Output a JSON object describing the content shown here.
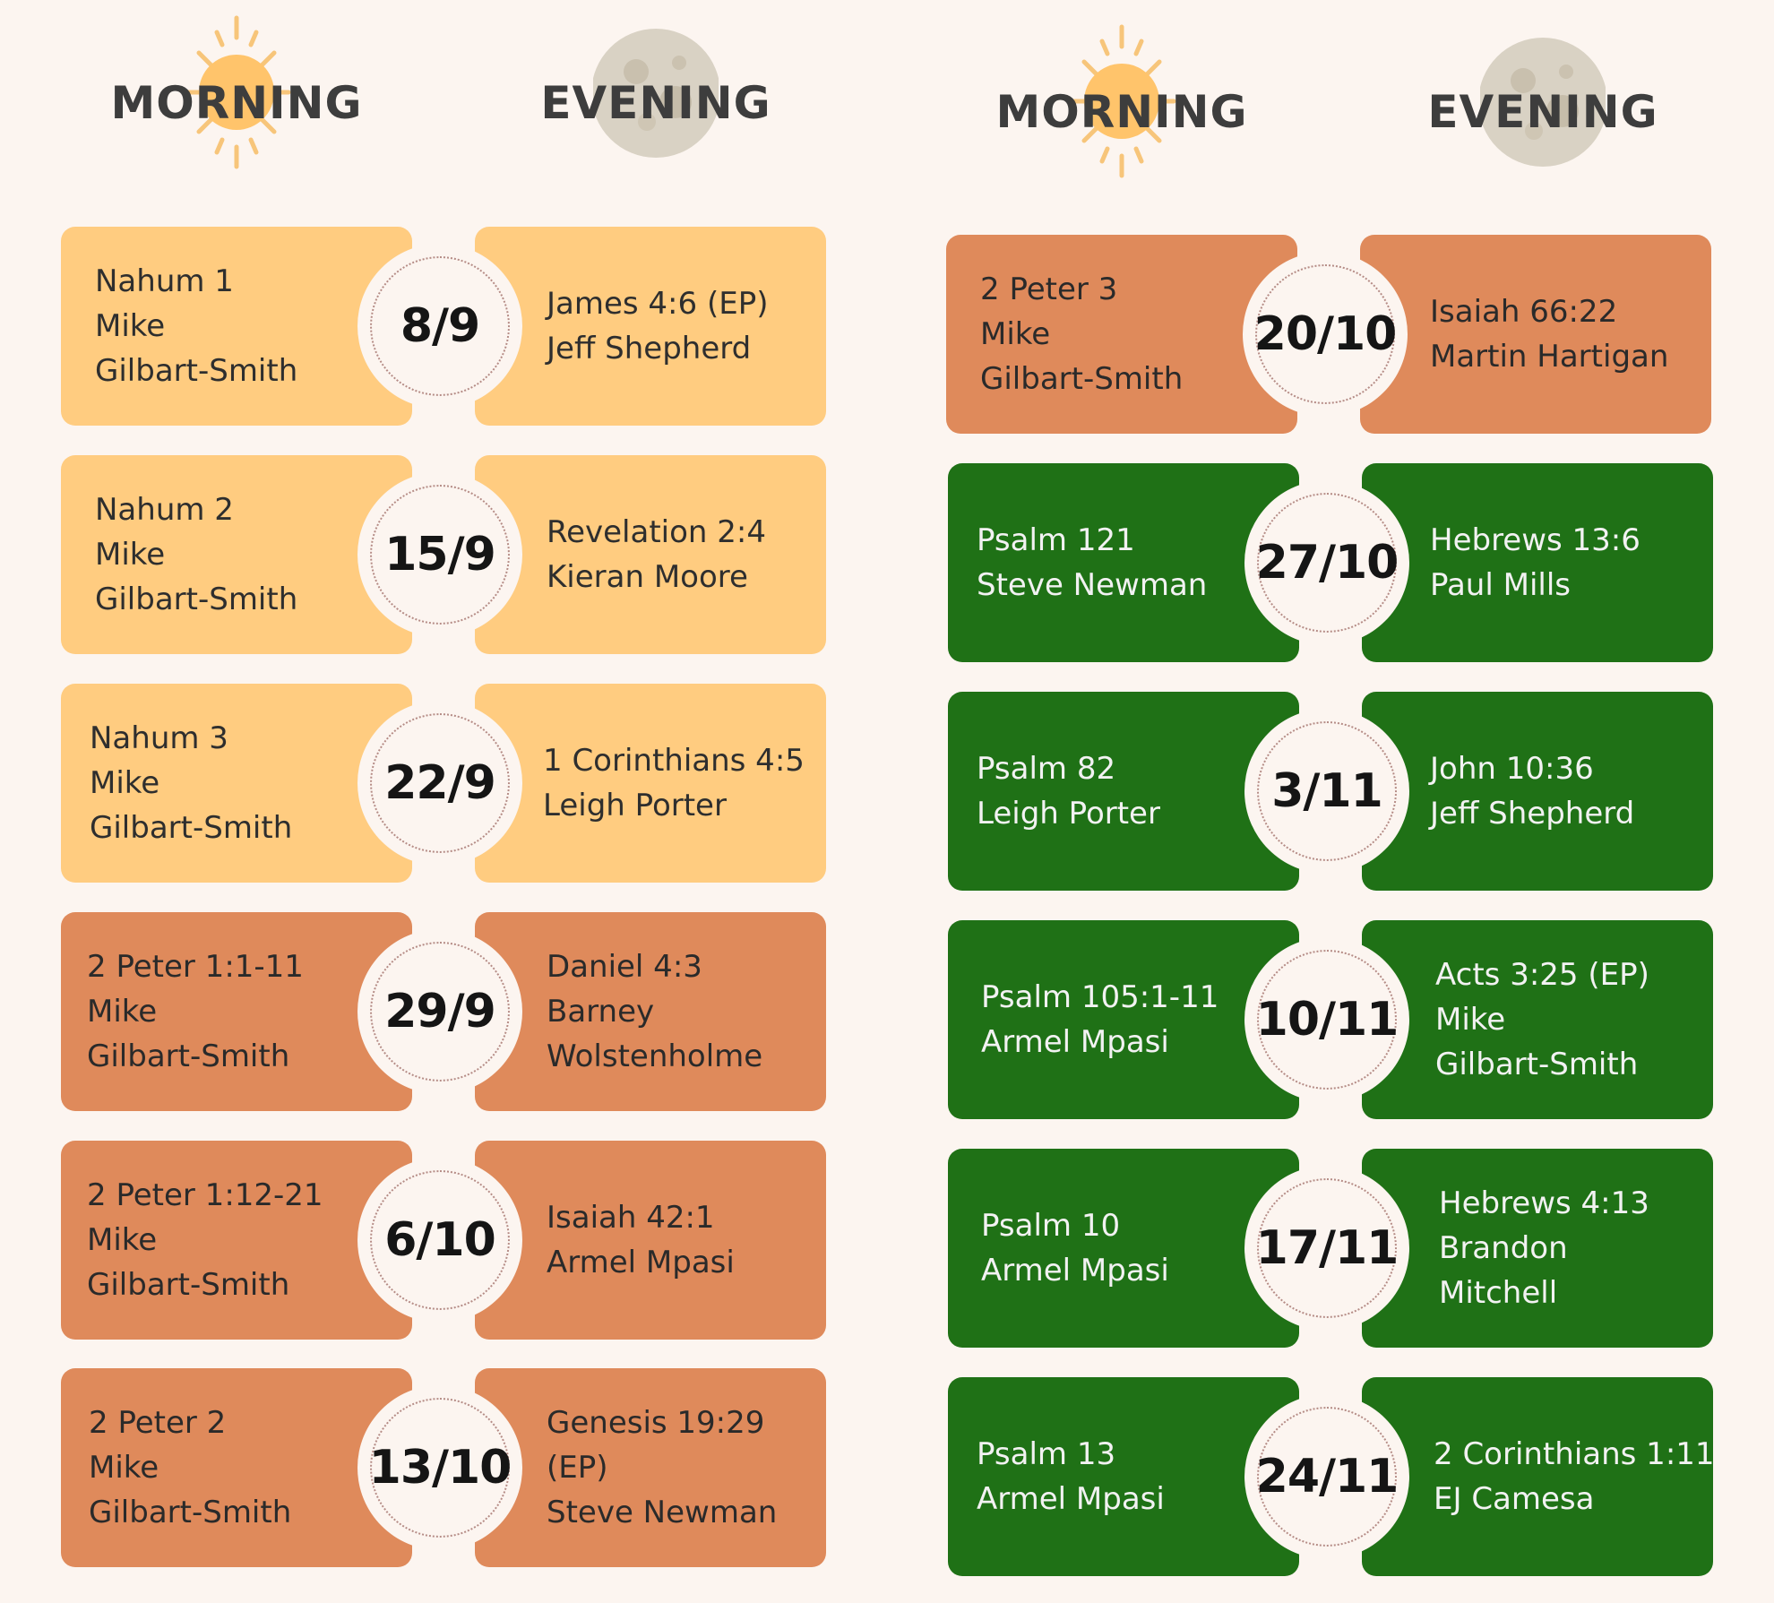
{
  "headers": {
    "left_morning": "MORNING",
    "left_evening": "EVENING",
    "right_morning": "MORNING",
    "right_evening": "EVENING"
  },
  "colors": {
    "background": "#fcf5f0",
    "yellow": "#ffcc80",
    "orange": "#df8a5b",
    "green": "#1f7116",
    "sun": "#ffc46b",
    "sun_rays": "#f7c57a",
    "moon": "#d9d2c4"
  },
  "icons": {
    "morning": "sun-icon",
    "evening": "moon-icon"
  },
  "left_column": [
    {
      "date": "8/9",
      "theme": "yellow",
      "morning": [
        "Nahum 1",
        "Mike",
        "Gilbart-Smith"
      ],
      "evening": [
        "James 4:6 (EP)",
        "Jeff Shepherd"
      ]
    },
    {
      "date": "15/9",
      "theme": "yellow",
      "morning": [
        "Nahum 2",
        "Mike",
        "Gilbart-Smith"
      ],
      "evening": [
        "Revelation 2:4",
        "Kieran Moore"
      ]
    },
    {
      "date": "22/9",
      "theme": "yellow",
      "morning": [
        "Nahum 3",
        "Mike",
        "Gilbart-Smith"
      ],
      "evening": [
        "1 Corinthians 4:5",
        "Leigh Porter"
      ]
    },
    {
      "date": "29/9",
      "theme": "orange",
      "morning": [
        "2 Peter 1:1-11",
        "Mike",
        "Gilbart-Smith"
      ],
      "evening": [
        "Daniel 4:3",
        "Barney",
        "Wolstenholme"
      ]
    },
    {
      "date": "6/10",
      "theme": "orange",
      "morning": [
        "2 Peter 1:12-21",
        "Mike",
        "Gilbart-Smith"
      ],
      "evening": [
        "Isaiah 42:1",
        "Armel Mpasi"
      ]
    },
    {
      "date": "13/10",
      "theme": "orange",
      "morning": [
        "2 Peter 2",
        "Mike",
        "Gilbart-Smith"
      ],
      "evening": [
        "Genesis 19:29",
        "(EP)",
        "Steve Newman"
      ]
    }
  ],
  "right_column": [
    {
      "date": "20/10",
      "theme": "orange",
      "morning": [
        "2 Peter 3",
        "Mike",
        "Gilbart-Smith"
      ],
      "evening": [
        "Isaiah 66:22",
        "Martin Hartigan"
      ]
    },
    {
      "date": "27/10",
      "theme": "green",
      "morning": [
        "Psalm 121",
        "Steve Newman"
      ],
      "evening": [
        "Hebrews 13:6",
        "Paul Mills"
      ]
    },
    {
      "date": "3/11",
      "theme": "green",
      "morning": [
        "Psalm 82",
        "Leigh Porter"
      ],
      "evening": [
        "John 10:36",
        "Jeff Shepherd"
      ]
    },
    {
      "date": "10/11",
      "theme": "green",
      "morning": [
        "Psalm 105:1-11",
        "Armel Mpasi"
      ],
      "evening": [
        "Acts 3:25 (EP)",
        "Mike",
        "Gilbart-Smith"
      ]
    },
    {
      "date": "17/11",
      "theme": "green",
      "morning": [
        "Psalm 10",
        "Armel Mpasi"
      ],
      "evening": [
        "Hebrews 4:13",
        "Brandon",
        "Mitchell"
      ]
    },
    {
      "date": "24/11",
      "theme": "green",
      "morning": [
        "Psalm 13",
        "Armel Mpasi"
      ],
      "evening": [
        "2 Corinthians 1:11",
        "EJ Camesa"
      ]
    }
  ]
}
